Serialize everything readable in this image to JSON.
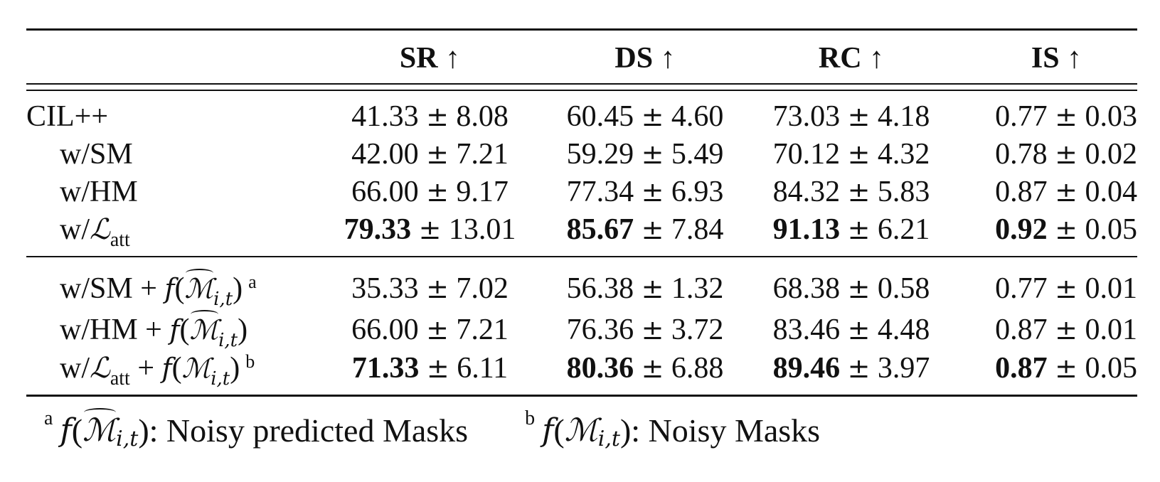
{
  "table": {
    "columns": [
      {
        "label": "SR",
        "arrow": "↑"
      },
      {
        "label": "DS",
        "arrow": "↑"
      },
      {
        "label": "RC",
        "arrow": "↑"
      },
      {
        "label": "IS",
        "arrow": "↑"
      }
    ],
    "group1": [
      {
        "label": "CIL++",
        "cells": [
          {
            "mean": "41.33",
            "std": "8.08"
          },
          {
            "mean": "60.45",
            "std": "4.60"
          },
          {
            "mean": "73.03",
            "std": "4.18"
          },
          {
            "mean": "0.77",
            "std": "0.03"
          }
        ]
      },
      {
        "label": "w/SM",
        "cells": [
          {
            "mean": "42.00",
            "std": "7.21"
          },
          {
            "mean": "59.29",
            "std": "5.49"
          },
          {
            "mean": "70.12",
            "std": "4.32"
          },
          {
            "mean": "0.78",
            "std": "0.02"
          }
        ]
      },
      {
        "label": "w/HM",
        "cells": [
          {
            "mean": "66.00",
            "std": "9.17"
          },
          {
            "mean": "77.34",
            "std": "6.93"
          },
          {
            "mean": "84.32",
            "std": "5.83"
          },
          {
            "mean": "0.87",
            "std": "0.04"
          }
        ]
      },
      {
        "label_prefix": "w/",
        "label_symbol": "ℒ",
        "label_sub": "att",
        "cells": [
          {
            "mean": "79.33",
            "std": "13.01",
            "bold": true
          },
          {
            "mean": "85.67",
            "std": "7.84",
            "bold": true
          },
          {
            "mean": "91.13",
            "std": "6.21",
            "bold": true
          },
          {
            "mean": "0.92",
            "std": "0.05",
            "bold": true
          }
        ]
      }
    ],
    "group2": [
      {
        "label_prefix": "w/SM + ",
        "func": "f",
        "mask_symbol": "ℳ",
        "mask_sub": "i,t",
        "noisy_predicted": true,
        "footnote_mark": "a",
        "cells": [
          {
            "mean": "35.33",
            "std": "7.02"
          },
          {
            "mean": "56.38",
            "std": "1.32"
          },
          {
            "mean": "68.38",
            "std": "0.58"
          },
          {
            "mean": "0.77",
            "std": "0.01"
          }
        ]
      },
      {
        "label_prefix": "w/HM + ",
        "func": "f",
        "mask_symbol": "ℳ",
        "mask_sub": "i,t",
        "noisy_predicted": true,
        "footnote_mark": "",
        "cells": [
          {
            "mean": "66.00",
            "std": "7.21"
          },
          {
            "mean": "76.36",
            "std": "3.72"
          },
          {
            "mean": "83.46",
            "std": "4.48"
          },
          {
            "mean": "0.87",
            "std": "0.01"
          }
        ]
      },
      {
        "label_prefix": "w/",
        "label_symbol": "ℒ",
        "label_sub": "att",
        "label_join": " + ",
        "func": "f",
        "mask_symbol": "ℳ",
        "mask_sub": "i,t",
        "noisy_predicted": false,
        "footnote_mark": "b",
        "cells": [
          {
            "mean": "71.33",
            "std": "6.11",
            "bold": true
          },
          {
            "mean": "80.36",
            "std": "6.88",
            "bold": true
          },
          {
            "mean": "89.46",
            "std": "3.97",
            "bold": true
          },
          {
            "mean": "0.87",
            "std": "0.05",
            "bold": true
          }
        ]
      }
    ],
    "pm_symbol": "±"
  },
  "footnotes": [
    {
      "mark": "a",
      "func": "f",
      "mask_symbol": "ℳ",
      "mask_sub": "i,t",
      "noisy_predicted": true,
      "text": ": Noisy predicted Masks"
    },
    {
      "mark": "b",
      "func": "f",
      "mask_symbol": "ℳ",
      "mask_sub": "i,t",
      "noisy_predicted": false,
      "text": ": Noisy Masks"
    }
  ]
}
